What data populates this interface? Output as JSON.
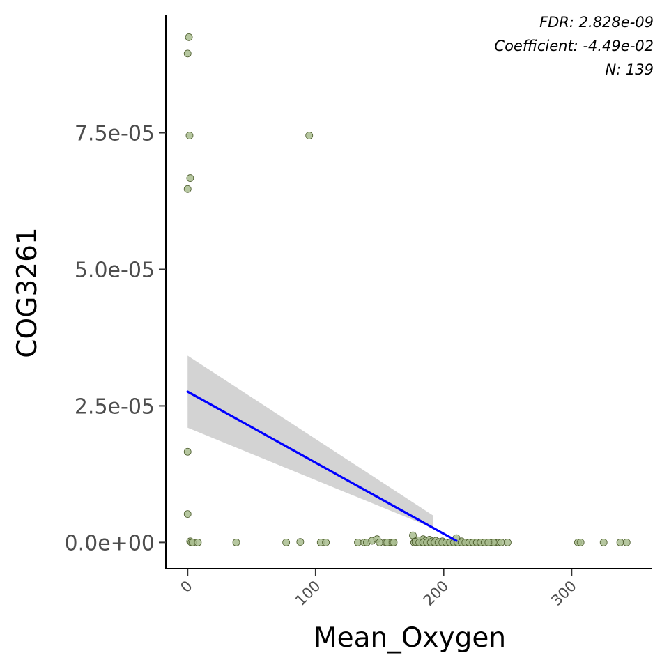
{
  "chart_data": {
    "type": "scatter",
    "xlabel": "Mean_Oxygen",
    "ylabel": "COG3261",
    "xlim": [
      -17,
      363
    ],
    "ylim": [
      -4.8e-06,
      9.65e-05
    ],
    "x_ticks": [
      0,
      100,
      200,
      300
    ],
    "x_tick_labels": [
      "0",
      "100",
      "200",
      "300"
    ],
    "y_ticks": [
      0,
      2.5e-05,
      5e-05,
      7.5e-05
    ],
    "y_tick_labels": [
      "0.0e+00",
      "2.5e-05",
      "5.0e-05",
      "7.5e-05"
    ],
    "grid": false,
    "annotations": [
      "FDR: 2.828e-09",
      "Coefficient: -4.49e-02",
      "N: 139"
    ],
    "colors": {
      "point_fill": "#a9bd8f",
      "point_stroke": "#4a5a2a",
      "fit_line": "#0000ff",
      "ribbon": "#d3d3d3"
    },
    "fit": {
      "x": [
        0,
        210
      ],
      "y": [
        2.76e-05,
        3e-07
      ]
    },
    "ribbon": {
      "x": [
        0,
        192
      ],
      "upper": [
        3.42e-05,
        4.9e-06
      ],
      "lower": [
        2.1e-05,
        2.6e-06
      ]
    },
    "points": {
      "x": [
        1.0,
        0,
        1.5,
        2,
        0,
        95,
        0,
        0,
        2,
        3,
        4,
        8,
        38,
        77,
        88,
        104,
        108,
        133,
        138,
        140,
        144,
        148,
        150,
        155,
        156,
        160,
        161,
        176,
        177,
        178,
        179,
        180,
        182,
        183,
        184,
        185,
        186,
        187,
        188,
        189,
        190,
        191,
        192,
        193,
        194,
        195,
        196,
        197,
        198,
        199,
        200,
        201,
        202,
        203,
        204,
        205,
        206,
        207,
        208,
        209,
        210,
        211,
        212,
        213,
        214,
        215,
        216,
        217,
        218,
        219,
        220,
        221,
        222,
        223,
        224,
        225,
        226,
        227,
        228,
        229,
        230,
        231,
        232,
        233,
        234,
        235,
        236,
        237,
        238,
        239,
        240,
        241,
        243,
        245,
        250,
        305,
        307,
        325,
        338,
        343,
        178,
        181,
        185,
        188,
        191,
        194,
        197,
        200,
        203,
        206,
        209,
        212,
        215,
        218,
        221,
        224,
        227,
        230,
        233,
        236,
        239,
        184,
        187,
        190,
        193,
        196,
        199,
        202,
        205,
        208,
        211,
        214,
        217,
        220,
        223,
        226,
        229,
        232,
        235
      ],
      "y": [
        9.25e-05,
        8.95e-05,
        7.45e-05,
        6.67e-05,
        6.47e-05,
        7.45e-05,
        1.66e-05,
        5.2e-06,
        2e-07,
        0,
        0,
        0,
        0,
        0,
        1e-07,
        0,
        0,
        0,
        0,
        0,
        3e-07,
        6e-07,
        0,
        0,
        0,
        0,
        0,
        1.3e-06,
        0,
        2e-07,
        0,
        4e-07,
        0,
        2e-07,
        6e-07,
        0,
        3e-07,
        0,
        1e-07,
        5e-07,
        0,
        2e-07,
        0,
        0,
        3e-07,
        0,
        1e-07,
        0,
        0,
        2e-07,
        0,
        0,
        0,
        0,
        0,
        0,
        0,
        0,
        0,
        0,
        8e-07,
        0,
        0,
        0,
        2e-07,
        0,
        0,
        0,
        0,
        0,
        0,
        0,
        0,
        0,
        0,
        0,
        0,
        0,
        0,
        0,
        0,
        0,
        0,
        0,
        0,
        0,
        0,
        0,
        0,
        0,
        0,
        0,
        0,
        0,
        0,
        0,
        0,
        0,
        0,
        0,
        1e-07,
        0,
        0,
        0,
        0,
        0,
        0,
        0,
        0,
        0,
        0,
        0,
        0,
        0,
        0,
        0,
        0,
        0,
        0,
        0,
        0,
        0,
        0,
        0,
        0,
        0,
        0,
        0,
        0,
        0,
        0,
        0,
        0,
        0,
        0,
        0,
        0,
        0,
        0
      ]
    }
  }
}
